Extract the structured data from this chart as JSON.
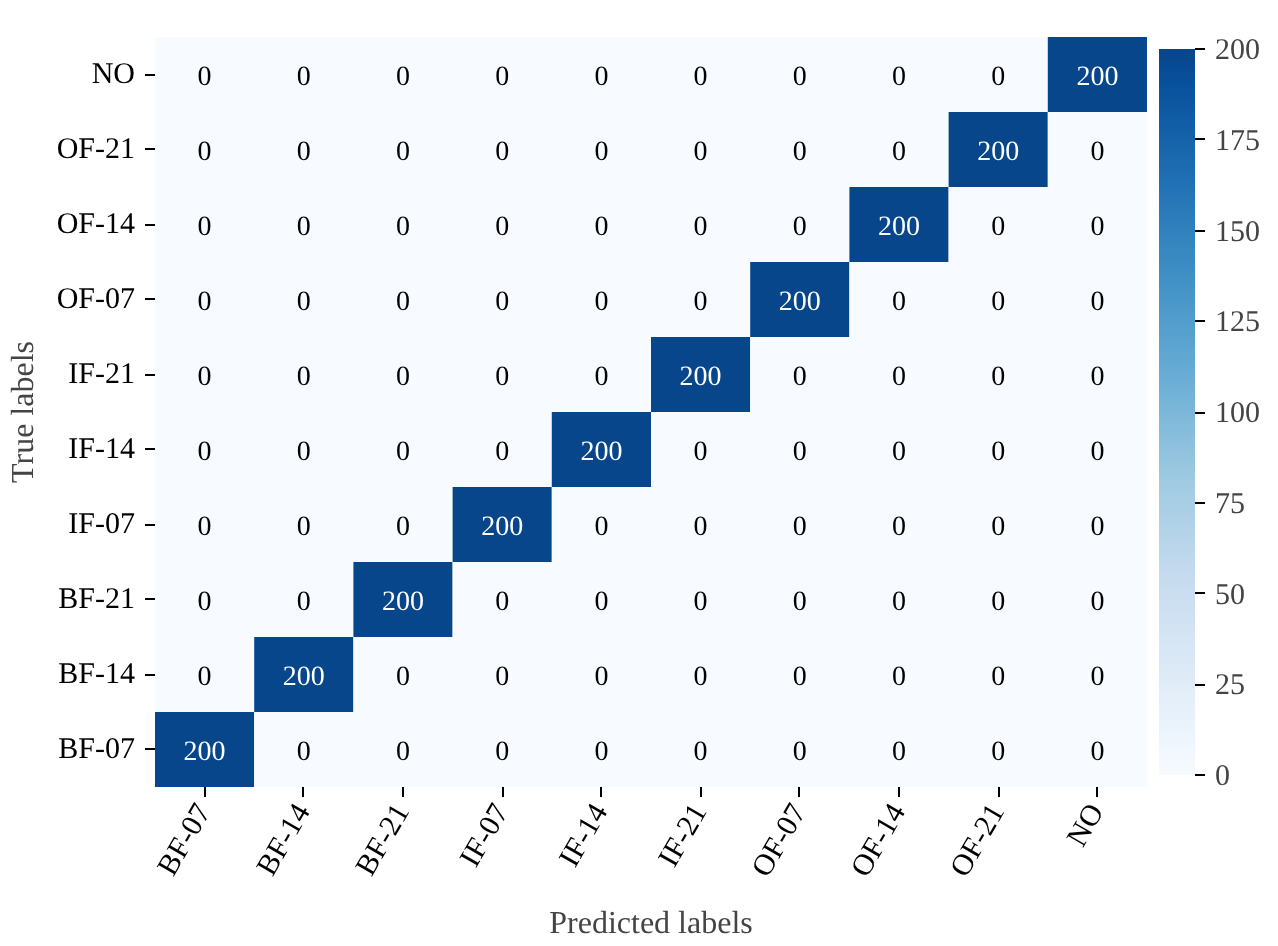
{
  "chart_data": {
    "type": "heatmap",
    "xlabel": "Predicted labels",
    "ylabel": "True labels",
    "categories": [
      "BF-07",
      "BF-14",
      "BF-21",
      "IF-07",
      "IF-14",
      "IF-21",
      "OF-07",
      "OF-14",
      "OF-21",
      "NO"
    ],
    "y_categories": [
      "NO",
      "OF-21",
      "OF-14",
      "OF-07",
      "IF-21",
      "IF-14",
      "IF-07",
      "BF-21",
      "BF-14",
      "BF-07"
    ],
    "cells": [
      [
        0,
        0,
        0,
        0,
        0,
        0,
        0,
        0,
        0,
        200
      ],
      [
        0,
        0,
        0,
        0,
        0,
        0,
        0,
        0,
        200,
        0
      ],
      [
        0,
        0,
        0,
        0,
        0,
        0,
        0,
        200,
        0,
        0
      ],
      [
        0,
        0,
        0,
        0,
        0,
        0,
        200,
        0,
        0,
        0
      ],
      [
        0,
        0,
        0,
        0,
        0,
        200,
        0,
        0,
        0,
        0
      ],
      [
        0,
        0,
        0,
        0,
        200,
        0,
        0,
        0,
        0,
        0
      ],
      [
        0,
        0,
        0,
        200,
        0,
        0,
        0,
        0,
        0,
        0
      ],
      [
        0,
        0,
        200,
        0,
        0,
        0,
        0,
        0,
        0,
        0
      ],
      [
        0,
        200,
        0,
        0,
        0,
        0,
        0,
        0,
        0,
        0
      ],
      [
        200,
        0,
        0,
        0,
        0,
        0,
        0,
        0,
        0,
        0
      ]
    ],
    "clim": [
      0,
      200
    ],
    "cticks": [
      0,
      25,
      50,
      75,
      100,
      125,
      150,
      175,
      200
    ],
    "data_labels": true
  }
}
